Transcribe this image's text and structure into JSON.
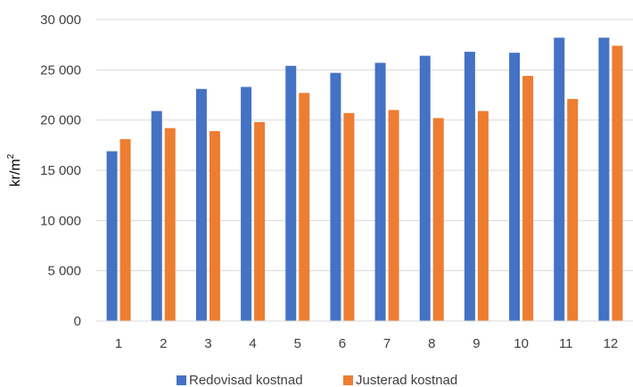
{
  "chart_data": {
    "type": "bar",
    "categories": [
      "1",
      "2",
      "3",
      "4",
      "5",
      "6",
      "7",
      "8",
      "9",
      "10",
      "11",
      "12"
    ],
    "series": [
      {
        "name": "Redovisad kostnad",
        "color": "#4472C4",
        "values": [
          16900,
          20900,
          23100,
          23300,
          25400,
          24700,
          25700,
          26400,
          26800,
          26700,
          28200,
          28200
        ]
      },
      {
        "name": "Justerad kostnad",
        "color": "#ED7D31",
        "values": [
          18100,
          19200,
          18900,
          19800,
          22700,
          20700,
          21000,
          20200,
          20900,
          24400,
          22100,
          27400
        ]
      }
    ],
    "ylabel": "kr/m",
    "ylabel_superscript": "2",
    "ylim": [
      0,
      30000
    ],
    "yticks": [
      0,
      5000,
      10000,
      15000,
      20000,
      25000,
      30000
    ],
    "ytick_labels": [
      "0",
      "5 000",
      "10 000",
      "15 000",
      "20 000",
      "25 000",
      "30 000"
    ],
    "grid": true,
    "legend_position": "bottom"
  }
}
